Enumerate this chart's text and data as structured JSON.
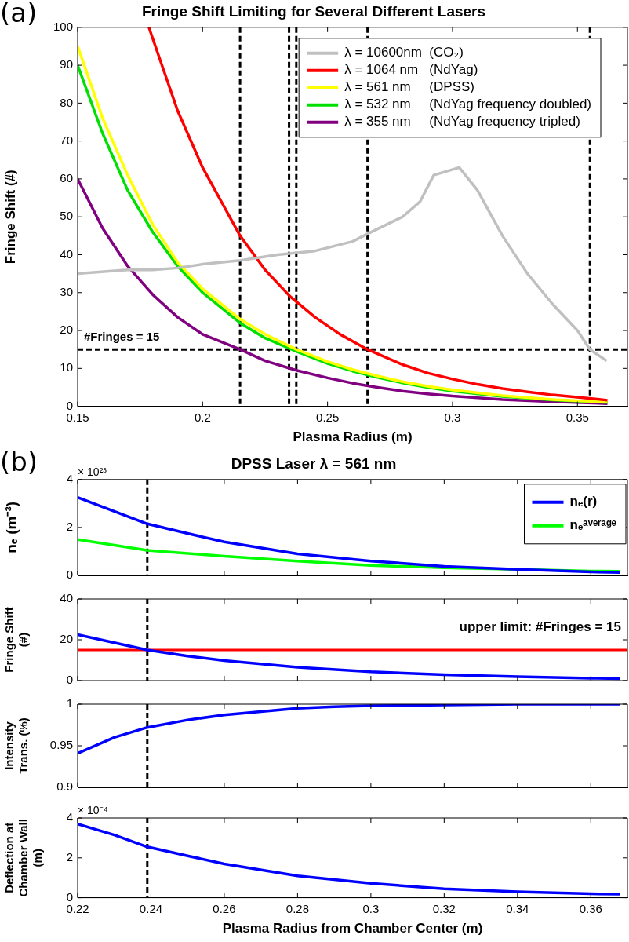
{
  "chart_data": [
    {
      "type": "line",
      "title": "Fringe Shift Limiting for Several Different Lasers",
      "xlabel": "Plasma Radius (m)",
      "ylabel": "Fringe Shift (#)",
      "annotations": [
        "(a)"
      ],
      "xlim": [
        0.15,
        0.37
      ],
      "xticks": [
        0.15,
        0.2,
        0.25,
        0.3,
        0.35
      ],
      "ylim": [
        0,
        100
      ],
      "yticks": [
        0,
        10,
        20,
        30,
        40,
        50,
        60,
        70,
        80,
        90,
        100
      ],
      "grid": false,
      "legend": "top right",
      "marker": "none",
      "line_style": "solid",
      "series": [
        {
          "name": "λ = 10600nm  (CO₂)",
          "color": "#c0c0c0",
          "x": [
            0.15,
            0.17,
            0.18,
            0.19,
            0.2,
            0.215,
            0.23,
            0.245,
            0.26,
            0.266,
            0.28,
            0.287,
            0.2925,
            0.3027,
            0.31,
            0.32,
            0.33,
            0.34,
            0.35,
            0.355,
            0.3617
          ],
          "values": [
            35,
            36,
            36,
            36.5,
            37.5,
            38.5,
            40,
            41,
            43.5,
            45.5,
            50,
            54,
            61,
            63,
            57,
            45,
            35,
            27,
            20,
            15,
            12
          ]
        },
        {
          "name": "λ = 1064 nm   (NdYag)",
          "color": "#ff0000",
          "x": [
            0.1785,
            0.19,
            0.2,
            0.215,
            0.225,
            0.235,
            0.245,
            0.255,
            0.266,
            0.28,
            0.29,
            0.3,
            0.31,
            0.32,
            0.33,
            0.34,
            0.35,
            0.362
          ],
          "values": [
            100,
            78,
            63,
            45,
            36,
            29,
            23.5,
            19,
            15,
            11,
            8.8,
            7.2,
            5.8,
            4.7,
            3.8,
            3,
            2.4,
            1.6
          ]
        },
        {
          "name": "λ = 561 nm     (DPSS)",
          "color": "#ffff00",
          "x": [
            0.15,
            0.16,
            0.17,
            0.18,
            0.19,
            0.2,
            0.215,
            0.225,
            0.2375,
            0.25,
            0.26,
            0.27,
            0.28,
            0.29,
            0.3,
            0.32,
            0.34,
            0.362
          ],
          "values": [
            95,
            76,
            61,
            48,
            38,
            31,
            23,
            19,
            15,
            11.8,
            9.7,
            8,
            6.5,
            5.3,
            4.3,
            2.8,
            1.8,
            1.1
          ]
        },
        {
          "name": "λ = 532 nm     (NdYag frequency doubled)",
          "color": "#00e000",
          "x": [
            0.15,
            0.16,
            0.17,
            0.18,
            0.19,
            0.2,
            0.215,
            0.225,
            0.2375,
            0.25,
            0.26,
            0.27,
            0.28,
            0.29,
            0.3,
            0.32,
            0.34,
            0.362
          ],
          "values": [
            90,
            72,
            57,
            46,
            37,
            30,
            22,
            18,
            14.5,
            11.3,
            9.3,
            7.6,
            6.2,
            5,
            4,
            2.6,
            1.7,
            1
          ]
        },
        {
          "name": "λ = 355 nm     (NdYag frequency tripled)",
          "color": "#800080",
          "x": [
            0.15,
            0.16,
            0.17,
            0.18,
            0.19,
            0.2,
            0.215,
            0.225,
            0.2375,
            0.25,
            0.26,
            0.27,
            0.28,
            0.29,
            0.3,
            0.32,
            0.34,
            0.362
          ],
          "values": [
            60,
            47,
            37,
            29.5,
            23.5,
            19,
            15,
            12,
            9.5,
            7.5,
            6.1,
            5,
            4,
            3.3,
            2.7,
            1.8,
            1.2,
            0.7
          ]
        }
      ],
      "ref_lines": [
        {
          "axis": "y",
          "value": 15,
          "label": "#Fringes = 15",
          "color": "#000000",
          "line_style": "dashed"
        },
        {
          "axis": "x",
          "value": 0.215,
          "color": "#000000",
          "line_style": "dashed"
        },
        {
          "axis": "x",
          "value": 0.2346,
          "color": "#000000",
          "line_style": "dashed"
        },
        {
          "axis": "x",
          "value": 0.2375,
          "color": "#000000",
          "line_style": "dashed"
        },
        {
          "axis": "x",
          "value": 0.266,
          "color": "#000000",
          "line_style": "dashed"
        },
        {
          "axis": "x",
          "value": 0.355,
          "color": "#000000",
          "line_style": "dashed"
        }
      ]
    },
    {
      "type": "line",
      "title": "DPSS Laser λ = 561 nm",
      "ylabel": "nₑ (m⁻³)",
      "annotations": [
        "(b)",
        "× 10²³"
      ],
      "xlim": [
        0.22,
        0.37
      ],
      "xticks": [
        0.22,
        0.24,
        0.26,
        0.28,
        0.3,
        0.32,
        0.34,
        0.36
      ],
      "ylim": [
        0,
        4
      ],
      "yticks": [
        0,
        2,
        4
      ],
      "grid": false,
      "legend": "top right",
      "marker": "none",
      "tick_labels": "y",
      "series": [
        {
          "name": "nₑ(r)",
          "color": "#0000ff",
          "x": [
            0.22,
            0.239,
            0.25,
            0.26,
            0.28,
            0.3,
            0.32,
            0.34,
            0.36,
            0.368
          ],
          "values": [
            3.25,
            2.15,
            1.75,
            1.4,
            0.9,
            0.6,
            0.38,
            0.25,
            0.15,
            0.12
          ]
        },
        {
          "name": "nₑᵃᵛᵉʳᵃᵍᵉ",
          "color": "#00ff00",
          "x": [
            0.22,
            0.239,
            0.26,
            0.28,
            0.3,
            0.32,
            0.34,
            0.36,
            0.368
          ],
          "values": [
            1.5,
            1.05,
            0.8,
            0.6,
            0.42,
            0.32,
            0.25,
            0.18,
            0.17
          ]
        }
      ],
      "ref_lines": [
        {
          "axis": "x",
          "value": 0.239,
          "color": "#000000",
          "line_style": "dashed"
        }
      ]
    },
    {
      "type": "line",
      "ylabel": "Fringe Shift (#)",
      "xlim": [
        0.22,
        0.37
      ],
      "xticks": [
        0.22,
        0.24,
        0.26,
        0.28,
        0.3,
        0.32,
        0.34,
        0.36
      ],
      "ylim": [
        0,
        40
      ],
      "yticks": [
        0,
        20,
        40
      ],
      "grid": false,
      "marker": "none",
      "tick_labels": "y",
      "series": [
        {
          "color": "#0000ff",
          "x": [
            0.22,
            0.239,
            0.25,
            0.26,
            0.28,
            0.3,
            0.32,
            0.34,
            0.36,
            0.368
          ],
          "values": [
            22.5,
            15,
            12,
            9.8,
            6.5,
            4.3,
            2.9,
            1.9,
            1.2,
            1
          ]
        }
      ],
      "ref_lines": [
        {
          "axis": "x",
          "value": 0.239,
          "color": "#000000",
          "line_style": "dashed"
        },
        {
          "axis": "y",
          "value": 15,
          "label": "upper limit: #Fringes = 15",
          "color": "#ff0000",
          "line_style": "solid"
        }
      ]
    },
    {
      "type": "line",
      "ylabel": "Intensity Trans. (%)",
      "xlim": [
        0.22,
        0.37
      ],
      "xticks": [
        0.22,
        0.24,
        0.26,
        0.28,
        0.3,
        0.32,
        0.34,
        0.36
      ],
      "ylim": [
        0.9,
        1
      ],
      "yticks": [
        0.9,
        0.95,
        1
      ],
      "grid": false,
      "marker": "none",
      "tick_labels": "y",
      "series": [
        {
          "color": "#0000ff",
          "x": [
            0.22,
            0.23,
            0.239,
            0.25,
            0.26,
            0.27,
            0.28,
            0.29,
            0.3,
            0.32,
            0.34,
            0.368
          ],
          "values": [
            0.941,
            0.96,
            0.972,
            0.981,
            0.987,
            0.991,
            0.995,
            0.997,
            0.998,
            0.999,
            1,
            1
          ]
        }
      ],
      "ref_lines": [
        {
          "axis": "x",
          "value": 0.239,
          "color": "#000000",
          "line_style": "dashed"
        }
      ]
    },
    {
      "type": "line",
      "xlabel": "Plasma Radius from Chamber Center (m)",
      "ylabel": "Deflection at Chamber Wall (m)",
      "annotations": [
        "× 10⁻⁴"
      ],
      "xlim": [
        0.22,
        0.37
      ],
      "xticks": [
        0.22,
        0.24,
        0.26,
        0.28,
        0.3,
        0.32,
        0.34,
        0.36
      ],
      "ylim": [
        0,
        4
      ],
      "yticks": [
        0,
        2,
        4
      ],
      "grid": false,
      "marker": "none",
      "series": [
        {
          "color": "#0000ff",
          "x": [
            0.22,
            0.23,
            0.239,
            0.25,
            0.26,
            0.28,
            0.3,
            0.32,
            0.34,
            0.36,
            0.368
          ],
          "values": [
            3.7,
            3.15,
            2.55,
            2.1,
            1.7,
            1.1,
            0.72,
            0.45,
            0.3,
            0.2,
            0.18
          ]
        }
      ],
      "ref_lines": [
        {
          "axis": "x",
          "value": 0.239,
          "color": "#000000",
          "line_style": "dashed"
        }
      ]
    }
  ]
}
